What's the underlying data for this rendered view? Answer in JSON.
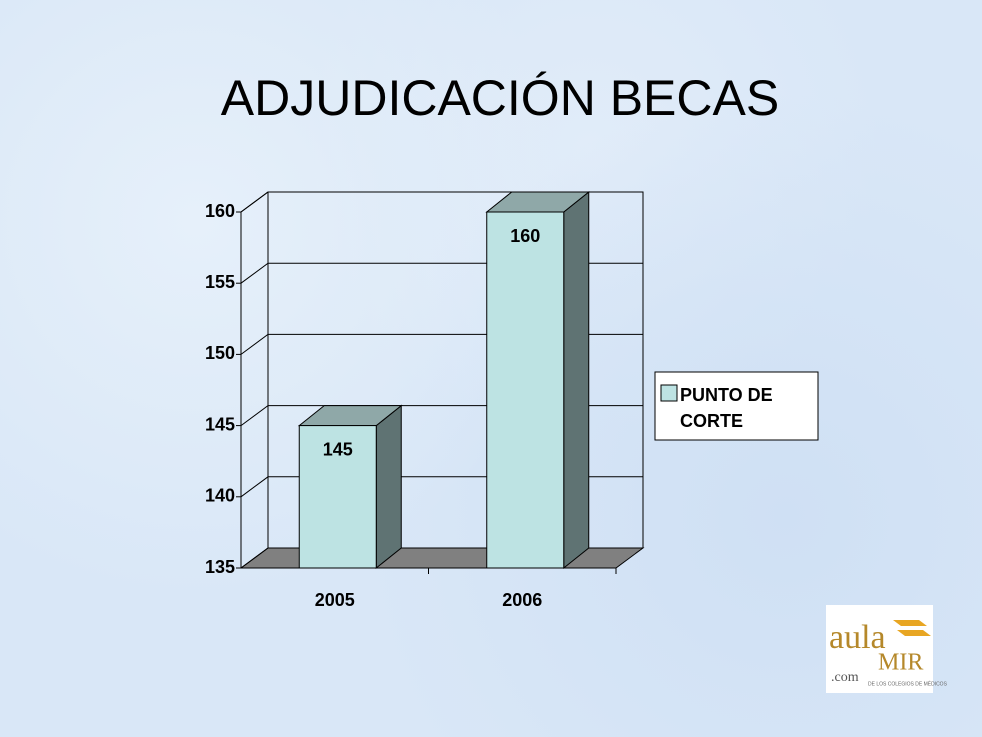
{
  "chart_data": {
    "type": "bar3d",
    "title": "ADJUDICACIÓN BECAS",
    "categories": [
      "2005",
      "2006"
    ],
    "series": [
      {
        "name": "PUNTO DE CORTE",
        "color": "#bde3e3",
        "values": [
          145,
          160
        ]
      }
    ],
    "ylim": [
      135,
      160
    ],
    "yticks": [
      135,
      140,
      145,
      150,
      155,
      160
    ],
    "grid": true,
    "legend": "right"
  },
  "logo": {
    "aula": "aula",
    "mir": "MIR",
    "com": ".com",
    "subtitle": "DE LOS COLEGIOS DE MÉDICOS"
  }
}
